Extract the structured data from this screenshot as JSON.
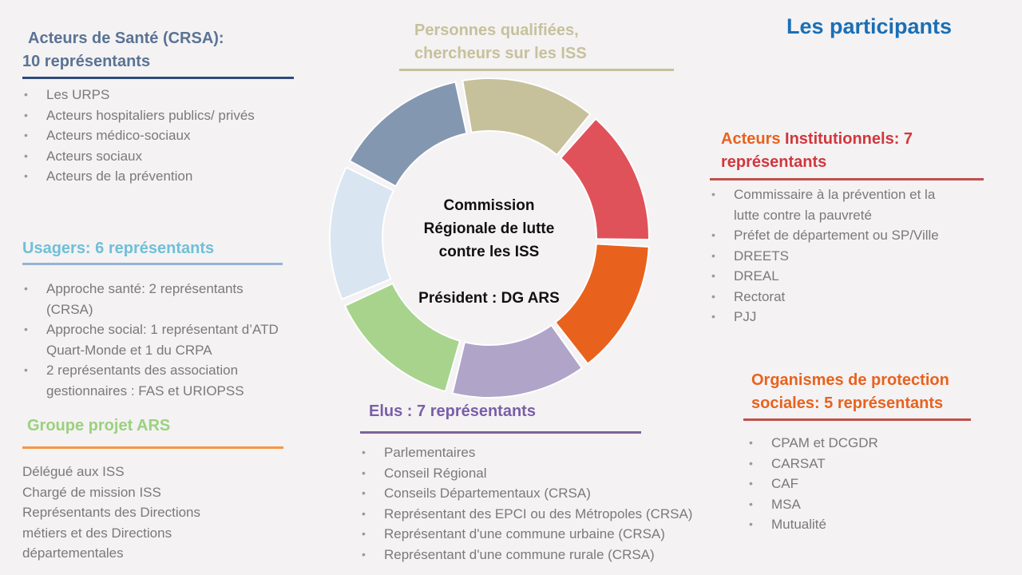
{
  "title": "Les participants",
  "center": {
    "line1": "Commission",
    "line2": "Régionale de lutte",
    "line3": "contre les ISS",
    "line4": "Président : DG ARS"
  },
  "ring_segments": [
    {
      "name": "personnes-qualifiees",
      "color": "#c6c19b"
    },
    {
      "name": "acteurs-institutionnels",
      "color": "#e0525a"
    },
    {
      "name": "organismes-protection",
      "color": "#e8621e"
    },
    {
      "name": "elus",
      "color": "#b0a4c9"
    },
    {
      "name": "groupe-projet",
      "color": "#a7d38d"
    },
    {
      "name": "usagers",
      "color": "#d9e5f1"
    },
    {
      "name": "acteurs-sante",
      "color": "#8497b0"
    }
  ],
  "sante": {
    "title_line1": "Acteurs de Santé (CRSA):",
    "title_line2": "10 représentants",
    "color": "#5a7394",
    "rule_color": "#2e4b7c",
    "items": [
      "Les URPS",
      "Acteurs hospitaliers publics/ privés",
      "Acteurs médico-sociaux",
      "Acteurs sociaux",
      "Acteurs de la prévention"
    ]
  },
  "qualifiees": {
    "title_line1": "Personnes qualifiées,",
    "title_line2": "chercheurs sur les ISS",
    "color": "#c6c19b"
  },
  "institutionnels": {
    "title_prefix": "Acteurs ",
    "title_line1": "Institutionnels: 7",
    "title_line2": "représentants",
    "prefix_color": "#e8621e",
    "color": "#d0373e",
    "rule_color": "#c0504d",
    "items": [
      "Commissaire à la prévention et la",
      "lutte contre la  pauvreté",
      "Préfet de département ou SP/Ville",
      "DREETS",
      "DREAL",
      "Rectorat",
      "PJJ"
    ]
  },
  "usagers": {
    "title": "Usagers: 6 représentants",
    "color": "#6fbfd8",
    "rule_color": "#95b3d7",
    "items": [
      {
        "l1": "Approche santé: 2 représentants",
        "l2": "(CRSA)"
      },
      {
        "l1": "Approche social: 1 représentant d’ATD",
        "l2": "Quart-Monde et 1 du CRPA"
      },
      {
        "l1": "2 représentants des association",
        "l2": "gestionnaires  : FAS et URIOPSS"
      }
    ]
  },
  "organismes": {
    "title_line1": "Organismes de protection",
    "title_line2": "sociales: 5 représentants",
    "color": "#e8621e",
    "rule_color": "#c0504d",
    "items": [
      "CPAM et DCGDR",
      "CARSAT",
      "CAF",
      "MSA",
      "Mutualité"
    ]
  },
  "groupe": {
    "title": "Groupe projet ARS",
    "color": "#9bd17f",
    "rule_color": "#f79646",
    "lines": [
      "Délégué aux ISS",
      "Chargé de mission ISS",
      "Représentants des Directions",
      "métiers et des Directions",
      "départementales"
    ]
  },
  "elus": {
    "title": "Elus : 7 représentants",
    "color": "#7a5ea8",
    "rule_color": "#7a6496",
    "items": [
      "Parlementaires",
      "Conseil Régional",
      "Conseils Départementaux (CRSA)",
      "Représentant des EPCI ou des Métropoles (CRSA)",
      "Représentant d'une commune urbaine (CRSA)",
      "Représentant d'une commune rurale (CRSA)"
    ]
  }
}
